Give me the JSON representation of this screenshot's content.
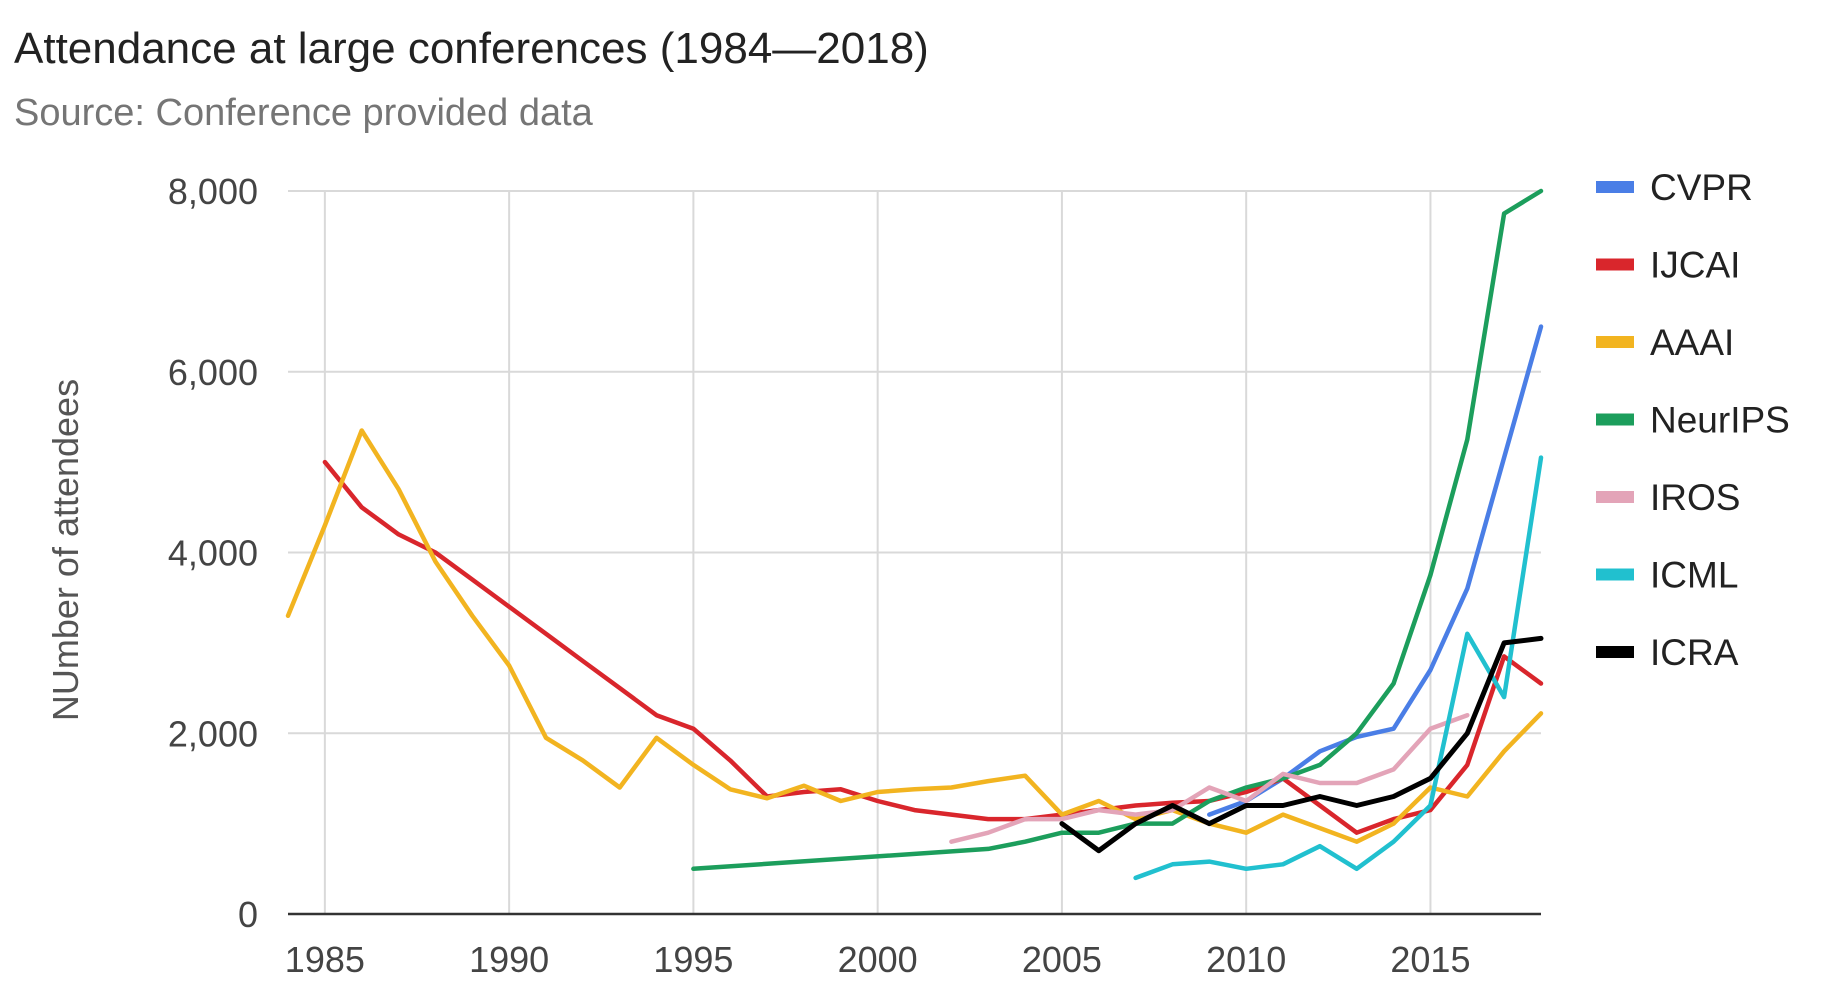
{
  "chart_data": {
    "type": "line",
    "title": "Attendance at large conferences (1984—2018)",
    "subtitle": "Source: Conference provided data",
    "xlabel": "",
    "ylabel": "NUmber of attendees",
    "xlim": [
      1984,
      2018
    ],
    "ylim": [
      0,
      8000
    ],
    "x_ticks": [
      1985,
      1990,
      1995,
      2000,
      2005,
      2010,
      2015
    ],
    "x_tick_labels": [
      "1985",
      "1990",
      "1995",
      "2000",
      "2005",
      "2010",
      "2015"
    ],
    "y_ticks": [
      0,
      2000,
      4000,
      6000,
      8000
    ],
    "y_tick_labels": [
      "0",
      "2,000",
      "4,000",
      "6,000",
      "8,000"
    ],
    "grid": true,
    "legend_position": "right",
    "series": [
      {
        "name": "CVPR",
        "color": "#4a7ee6",
        "x": [
          2009,
          2010,
          2011,
          2012,
          2013,
          2014,
          2015,
          2016,
          2017,
          2018
        ],
        "y": [
          1100,
          1250,
          1500,
          1800,
          1960,
          2050,
          2700,
          3600,
          5050,
          6500
        ]
      },
      {
        "name": "IJCAI",
        "color": "#d9262c",
        "x": [
          1985,
          1986,
          1987,
          1988,
          1989,
          1990,
          1991,
          1992,
          1993,
          1994,
          1995,
          1996,
          1997,
          1998,
          1999,
          2000,
          2001,
          2002,
          2003,
          2004,
          2005,
          2006,
          2007,
          2008,
          2009,
          2010,
          2011,
          2012,
          2013,
          2014,
          2015,
          2016,
          2017,
          2018
        ],
        "y": [
          5000,
          4500,
          4200,
          4000,
          3700,
          3400,
          3100,
          2800,
          2500,
          2200,
          2050,
          1700,
          1300,
          1350,
          1380,
          1250,
          1150,
          1100,
          1050,
          1050,
          1100,
          1150,
          1200,
          1230,
          1250,
          1350,
          1500,
          1200,
          900,
          1050,
          1150,
          1650,
          2850,
          2550
        ]
      },
      {
        "name": "AAAI",
        "color": "#f2b420",
        "x": [
          1984,
          1985,
          1986,
          1987,
          1988,
          1989,
          1990,
          1991,
          1992,
          1993,
          1994,
          1995,
          1996,
          1997,
          1998,
          1999,
          2000,
          2001,
          2002,
          2003,
          2004,
          2005,
          2006,
          2007,
          2008,
          2009,
          2010,
          2011,
          2012,
          2013,
          2014,
          2015,
          2016,
          2017,
          2018
        ],
        "y": [
          3300,
          4300,
          5350,
          4700,
          3900,
          3300,
          2750,
          1950,
          1700,
          1400,
          1950,
          1650,
          1380,
          1280,
          1420,
          1250,
          1350,
          1380,
          1400,
          1470,
          1530,
          1100,
          1250,
          1050,
          1150,
          1000,
          900,
          1100,
          950,
          800,
          1000,
          1400,
          1300,
          1800,
          2220
        ]
      },
      {
        "name": "NeurIPS",
        "color": "#1c9e5c",
        "x": [
          1995,
          2003,
          2004,
          2005,
          2006,
          2007,
          2008,
          2009,
          2010,
          2011,
          2012,
          2013,
          2014,
          2015,
          2016,
          2017,
          2018
        ],
        "y": [
          500,
          720,
          800,
          900,
          900,
          1000,
          1000,
          1250,
          1400,
          1500,
          1650,
          2000,
          2550,
          3750,
          5250,
          7750,
          8000
        ]
      },
      {
        "name": "IROS",
        "color": "#e3a4b8",
        "x": [
          2002,
          2003,
          2004,
          2005,
          2006,
          2007,
          2008,
          2009,
          2010,
          2011,
          2012,
          2013,
          2014,
          2015,
          2016
        ],
        "y": [
          800,
          900,
          1050,
          1050,
          1150,
          1100,
          1150,
          1400,
          1250,
          1550,
          1450,
          1450,
          1600,
          2050,
          2200
        ]
      },
      {
        "name": "ICML",
        "color": "#21c0cf",
        "x": [
          2007,
          2008,
          2009,
          2010,
          2011,
          2012,
          2013,
          2014,
          2015,
          2016,
          2017,
          2018
        ],
        "y": [
          400,
          550,
          580,
          500,
          550,
          750,
          500,
          800,
          1200,
          3100,
          2400,
          5050
        ]
      },
      {
        "name": "ICRA",
        "color": "#000000",
        "x": [
          2005,
          2006,
          2007,
          2008,
          2009,
          2010,
          2011,
          2012,
          2013,
          2014,
          2015,
          2016,
          2017,
          2018
        ],
        "y": [
          1000,
          700,
          1000,
          1200,
          1000,
          1200,
          1200,
          1300,
          1200,
          1300,
          1500,
          2000,
          3000,
          3050
        ]
      }
    ]
  }
}
